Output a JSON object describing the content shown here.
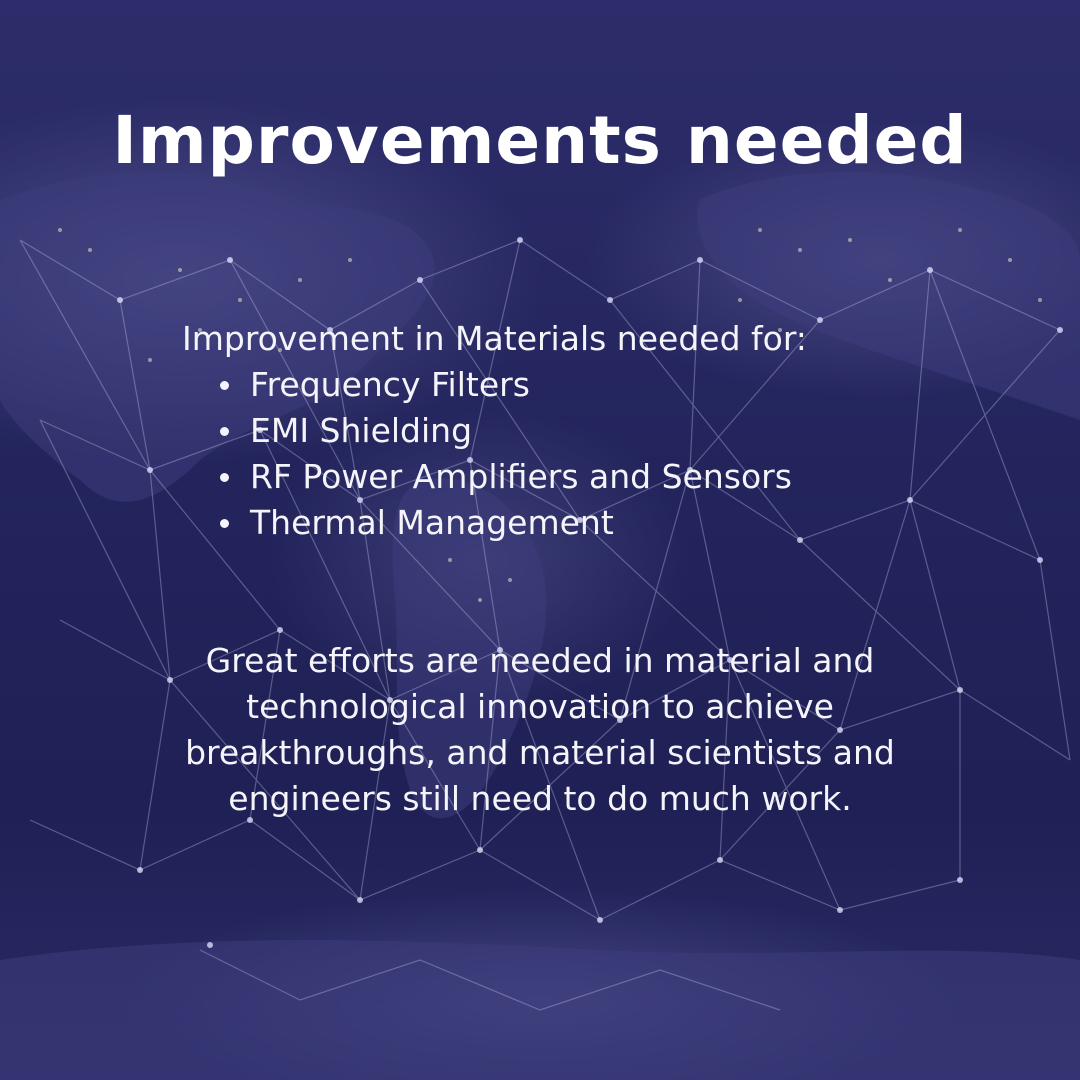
{
  "slide": {
    "title": "Improvements needed",
    "intro": "Improvement in Materials needed for:",
    "items": [
      "Frequency Filters",
      "EMI Shielding",
      "RF Power Amplifiers and Sensors",
      "Thermal Management"
    ],
    "paragraph": "Great efforts are needed in material and technological innovation to achieve breakthroughs, and material scientists and engineers still need to do much work."
  },
  "background": {
    "description_icon": "world-network-map-icon",
    "base_color": "#23245a",
    "line_color": "#c8c8ee",
    "city_light_color": "#e8e6c8"
  }
}
